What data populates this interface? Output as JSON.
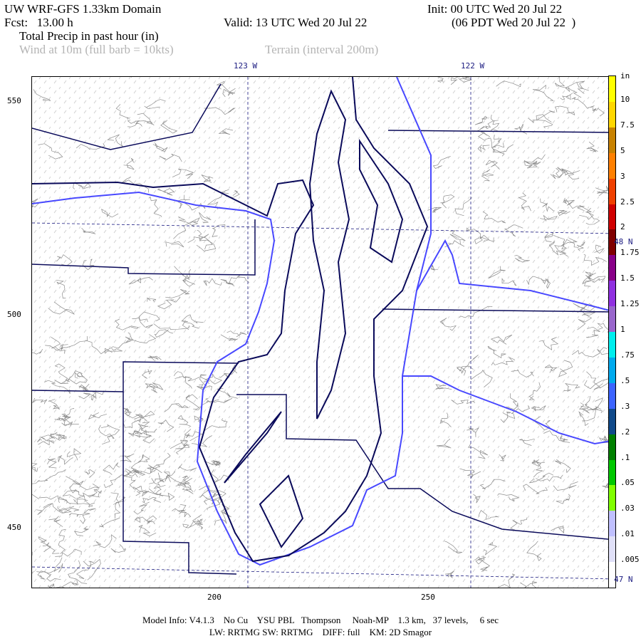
{
  "header": {
    "title": "UW WRF-GFS 1.33km Domain",
    "init": "Init: 00 UTC Wed 20 Jul 22",
    "fcst": "Fcst:   13.00 h",
    "valid": "Valid: 13 UTC Wed 20 Jul 22",
    "local": "(06 PDT Wed 20 Jul 22  )",
    "field": "Total Precip in past hour (in)",
    "overlay1": "Wind at 10m (full barb = 10kts)",
    "overlay2": "Terrain (interval 200m)"
  },
  "map": {
    "lon_labels": [
      "123 W",
      "122 W"
    ],
    "lat_labels": [
      "48 N",
      "47 N"
    ],
    "y_ticks": [
      "550",
      "500",
      "450"
    ],
    "x_ticks": [
      "200",
      "250"
    ],
    "colors": {
      "coast": "#0a0a5a",
      "rivers_borders": "#4848ff",
      "terrain": "#8c8c8c",
      "grid": "#1a1a80"
    }
  },
  "colorbar": {
    "unit": "in",
    "labels": [
      "10",
      "7.5",
      "5",
      "3",
      "2.5",
      "2",
      "1.75",
      "1.5",
      "1.25",
      "1",
      ".75",
      ".5",
      ".3",
      ".2",
      ".1",
      ".05",
      ".03",
      ".01",
      ".005"
    ],
    "colors": [
      "#ffff00",
      "#ffd700",
      "#c88200",
      "#ff8000",
      "#f04000",
      "#d00000",
      "#800000",
      "#880088",
      "#9030e0",
      "#9966cc",
      "#00eeee",
      "#00aaee",
      "#3c64ff",
      "#104a8a",
      "#008000",
      "#00c800",
      "#80ff00",
      "#c0c0ff",
      "#e0e0f8",
      "#ffffff"
    ]
  },
  "footer": {
    "line1": "Model Info: V4.1.3    No Cu    YSU PBL   Thompson     Noah-MP    1.3 km,   37 levels,     6 sec",
    "line2": "LW: RRTMG SW: RRTMG    DIFF: full    KM: 2D Smagor"
  }
}
